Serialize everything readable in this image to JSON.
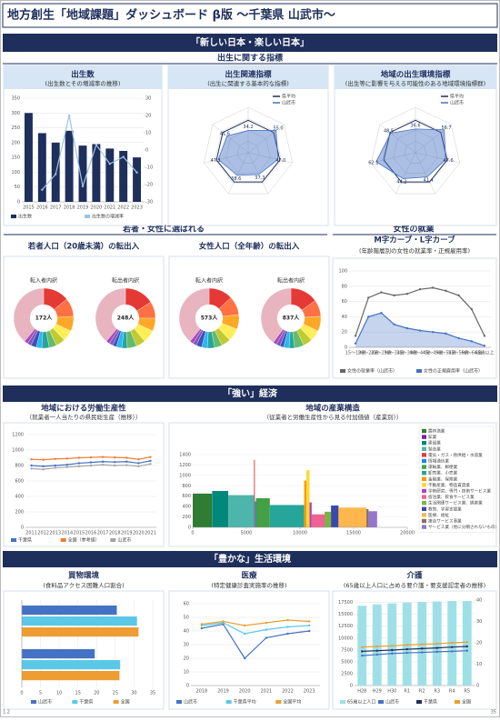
{
  "page": {
    "title": "地方創生「地域課題」ダッシュボード β版 ～千葉県 山武市～",
    "sections": [
      "「新しい日本・楽しい日本」",
      "「強い」経済",
      "「豊かな」生活環境"
    ],
    "subsections": [
      "出生に関する指標",
      "若者・女性に選ばれる",
      "女性の就業"
    ],
    "footer_left": "1.2",
    "footer_right": "35"
  },
  "chart_data": [
    {
      "type": "bar",
      "title": "出生数",
      "subtitle": "(出生数とその増減率の推移)",
      "categories": [
        "2015",
        "2016",
        "2017",
        "2018",
        "2019",
        "2020",
        "2021",
        "2022",
        "2023"
      ],
      "series": [
        {
          "name": "出生数",
          "type": "bar",
          "color": "#1f2f5c",
          "values": [
            300,
            232,
            200,
            240,
            190,
            195,
            180,
            172,
            150
          ]
        },
        {
          "name": "出生数の増減率",
          "type": "line",
          "axis": "y2",
          "color": "#9dc3e6",
          "values": [
            null,
            -23,
            -14,
            20,
            -21,
            3,
            -8,
            -4,
            -13
          ]
        }
      ],
      "ylim": [
        0,
        350
      ],
      "yticks": [
        0,
        50,
        100,
        150,
        200,
        250,
        300,
        350
      ],
      "y2lim": [
        -30,
        30
      ],
      "y2ticks": [
        -30,
        -20,
        -10,
        0,
        10,
        20,
        30
      ],
      "grid": true
    },
    {
      "type": "radar",
      "title": "出生関連指標",
      "subtitle": "(出生に関連する基本的な指標)",
      "rlim": [
        0,
        70
      ],
      "series": [
        {
          "name": "県平均",
          "color": "#1f2f5c",
          "values": [
            50,
            50,
            50,
            50,
            50,
            50,
            50
          ]
        },
        {
          "name": "山武市",
          "color": "#4472c4",
          "values": [
            34.2,
            55.0,
            47.0,
            37.3,
            38.6,
            47.3,
            41.6
          ],
          "value_labels": [
            "34.2",
            "55.0",
            "47.0",
            "37.3",
            "38.6",
            "47.3",
            "41.6"
          ]
        }
      ]
    },
    {
      "type": "radar",
      "title": "地域の出生環境指標",
      "subtitle": "(出生等に影響を与える可能性のある地域環境指標群)",
      "rlim": [
        0,
        70
      ],
      "series": [
        {
          "name": "県平均",
          "color": "#1f2f5c",
          "values": [
            50,
            50,
            50,
            50,
            50,
            50,
            50
          ]
        },
        {
          "name": "山武市",
          "color": "#4472c4",
          "values": [
            36.6,
            56.7,
            47.6,
            41.4,
            44.2,
            62.1,
            48.5
          ],
          "value_labels": [
            "36.6",
            "56.7",
            "47.6",
            "41.4",
            "44.2",
            "62.1",
            "48.5"
          ]
        }
      ]
    },
    {
      "type": "donut",
      "title": "若者人口（20歳未満）の転出入",
      "colors": [
        "#e53935",
        "#ff7043",
        "#ffa726",
        "#ffee58",
        "#c0ca33",
        "#66bb6a",
        "#26a69a",
        "#29b6f6",
        "#3f51b5",
        "#7e57c2",
        "#ab47bc",
        "#e8b4c0"
      ],
      "pies": [
        {
          "name": "転入者内訳",
          "center_label": "172人",
          "values": [
            14,
            10,
            8,
            6,
            5,
            4,
            4,
            3,
            3,
            2,
            2,
            39
          ]
        },
        {
          "name": "転出者内訳",
          "center_label": "248人",
          "values": [
            16,
            9,
            7,
            7,
            5,
            5,
            3,
            3,
            2,
            2,
            2,
            39
          ]
        }
      ]
    },
    {
      "type": "donut",
      "title": "女性人口（全年齢）の転出入",
      "colors": [
        "#e53935",
        "#ff7043",
        "#ffa726",
        "#ffee58",
        "#c0ca33",
        "#66bb6a",
        "#26a69a",
        "#29b6f6",
        "#3f51b5",
        "#7e57c2",
        "#ab47bc",
        "#e8b4c0"
      ],
      "pies": [
        {
          "name": "転入者内訳",
          "center_label": "573人",
          "values": [
            13,
            10,
            8,
            7,
            5,
            4,
            4,
            3,
            3,
            2,
            2,
            39
          ]
        },
        {
          "name": "転出者内訳",
          "center_label": "837人",
          "values": [
            15,
            9,
            8,
            6,
            5,
            5,
            3,
            3,
            2,
            2,
            2,
            40
          ]
        }
      ]
    },
    {
      "type": "line",
      "title": "M字カーブ・L字カーブ",
      "subtitle": "(年齢階層別の女性の就業率・正規雇用率)",
      "categories": [
        "15～19歳",
        "20～24歳",
        "25～29歳",
        "30～34歳",
        "35～39歳",
        "40～44歳",
        "45～49歳",
        "50～54歳",
        "55～59歳",
        "60～64歳",
        "65歳以上"
      ],
      "series": [
        {
          "name": "女性の就業率（山武市）",
          "type": "line",
          "color": "#666666",
          "values": [
            15,
            65,
            72,
            68,
            70,
            76,
            78,
            74,
            68,
            50,
            15
          ]
        },
        {
          "name": "女性の正規雇用率（山武市）",
          "type": "line",
          "area": true,
          "color": "#4472c4",
          "values": [
            5,
            40,
            45,
            30,
            25,
            22,
            20,
            18,
            12,
            8,
            2
          ]
        }
      ],
      "ylim": [
        0,
        100
      ],
      "yticks": [
        0,
        20,
        40,
        60,
        80,
        100
      ],
      "grid": true
    },
    {
      "type": "line",
      "title": "地域における労働生産性",
      "subtitle": "（就業者一人当たりの県民総生産（推移））",
      "categories": [
        "2011",
        "2012",
        "2013",
        "2014",
        "2015",
        "2016",
        "2017",
        "2018",
        "2019",
        "2020",
        "2021"
      ],
      "series": [
        {
          "name": "千葉県",
          "type": "line",
          "color": "#4472c4",
          "values": [
            800,
            790,
            800,
            810,
            830,
            840,
            850,
            845,
            850,
            830,
            860
          ]
        },
        {
          "name": "全国（参考値）",
          "type": "line",
          "color": "#ed7d31",
          "values": [
            880,
            875,
            885,
            890,
            900,
            905,
            910,
            905,
            900,
            880,
            910
          ]
        },
        {
          "name": "山武市",
          "type": "line",
          "color": "#a5a5a5",
          "values": [
            760,
            750,
            770,
            780,
            790,
            800,
            810,
            800,
            805,
            790,
            820
          ]
        }
      ],
      "ylim": [
        0,
        1200
      ],
      "yticks": [
        0,
        200,
        400,
        600,
        800,
        1000,
        1200
      ],
      "grid": true
    },
    {
      "type": "variwide",
      "title": "地域の産業構造",
      "subtitle": "（従業者と労働生産性から見る付加価値（産業別））",
      "categories": [
        "農林漁業",
        "鉱業",
        "建設業",
        "製造業",
        "電気・ガス・熱供給・水道業",
        "情報通信業",
        "運輸業、郵便業",
        "卸売業、小売業",
        "金融業、保険業",
        "不動産業、物品賃貸業",
        "学術研究、専門・技術サービス業",
        "宿泊業、飲食サービス業",
        "生活関連サービス業、娯楽業",
        "教育、学習支援業",
        "医療、福祉",
        "複合サービス事業",
        "サービス業（他に分類されないもの）"
      ],
      "colors": [
        "#2e7d32",
        "#7b1fa2",
        "#00897b",
        "#4db6ac",
        "#e53935",
        "#1e88e5",
        "#43a047",
        "#26a69a",
        "#ff9800",
        "#fdd835",
        "#ab47bc",
        "#f06292",
        "#7cb342",
        "#3949ab",
        "#ffb74d",
        "#8d6e63",
        "#9575cd"
      ],
      "values": [
        650,
        0,
        700,
        620,
        1300,
        500,
        560,
        430,
        900,
        1100,
        480,
        250,
        300,
        420,
        380,
        350,
        310
      ],
      "widths": [
        1800,
        10,
        1500,
        2400,
        80,
        100,
        1300,
        3200,
        200,
        300,
        200,
        1200,
        600,
        700,
        2600,
        200,
        800
      ],
      "ylim": [
        0,
        1400
      ],
      "yticks": [
        0,
        200,
        400,
        600,
        800,
        1000,
        1200,
        1400
      ],
      "xlim": [
        0,
        20000
      ],
      "xticks": [
        0,
        5000,
        10000,
        15000,
        20000
      ]
    },
    {
      "type": "hbar",
      "title": "買物環境",
      "subtitle": "(食料品アクセス困難人口割合)",
      "categories": [
        null,
        null
      ],
      "series": [
        {
          "name": "山武市",
          "color": "#4472c4",
          "values": [
            25.4,
            19.5
          ]
        },
        {
          "name": "千葉県",
          "color": "#5bc8e8",
          "values": [
            30.8,
            26.3
          ]
        },
        {
          "name": "全国",
          "color": "#ed9d31",
          "values": [
            31.2,
            26.1
          ]
        }
      ],
      "xlim": [
        0,
        35
      ],
      "xticks": [
        0,
        5,
        10,
        15,
        20,
        25,
        30,
        35
      ],
      "grid": true
    },
    {
      "type": "line",
      "title": "医療",
      "subtitle": "(特定健康診査実施率の推移)",
      "categories": [
        "2018",
        "2019",
        "2020",
        "2021",
        "2022",
        "2023"
      ],
      "series": [
        {
          "name": "山武市",
          "type": "line",
          "color": "#4472c4",
          "values": [
            42,
            45,
            20,
            35,
            38,
            40
          ]
        },
        {
          "name": "千葉県平均",
          "type": "line",
          "color": "#5bc8e8",
          "values": [
            44,
            46,
            38,
            41,
            43,
            44
          ]
        },
        {
          "name": "全国平均",
          "type": "line",
          "color": "#ed9d31",
          "values": [
            45,
            47,
            44,
            46,
            48,
            47
          ]
        }
      ],
      "ylim": [
        0,
        60
      ],
      "yticks": [
        0,
        10,
        20,
        30,
        40,
        50,
        60
      ],
      "grid": true
    },
    {
      "type": "bar",
      "title": "介護",
      "subtitle": "(65歳以上人口に占める要介護・要支援認定者の推移)",
      "categories": [
        "H28",
        "H29",
        "H30",
        "R1",
        "R2",
        "R3",
        "R4",
        "R5"
      ],
      "series": [
        {
          "name": "65歳以上人口",
          "type": "bar",
          "color": "#9fe0e8",
          "values": [
            16800,
            17100,
            17300,
            17500,
            17600,
            17700,
            17800,
            17800
          ]
        },
        {
          "name": "山武市",
          "type": "line",
          "axis": "y2",
          "color": "#4472c4",
          "values": [
            14,
            14.5,
            15,
            15.3,
            15.5,
            15.8,
            16,
            16.3
          ]
        },
        {
          "name": "千葉県",
          "type": "line",
          "axis": "y2",
          "color": "#1f2f5c",
          "values": [
            16,
            16.3,
            16.6,
            17,
            17.3,
            17.6,
            18,
            18.3
          ]
        },
        {
          "name": "全国",
          "type": "line",
          "axis": "y2",
          "color": "#ed9d31",
          "values": [
            18,
            18.3,
            18.6,
            19,
            19.3,
            19.6,
            20,
            20.3
          ]
        }
      ],
      "ylim": [
        0,
        18000
      ],
      "yticks": [
        0,
        2500,
        5000,
        7500,
        10000,
        12500,
        15000,
        17500
      ],
      "y2lim": [
        0,
        40
      ],
      "y2ticks": [
        0,
        10,
        20,
        30,
        40
      ],
      "grid": true
    }
  ]
}
